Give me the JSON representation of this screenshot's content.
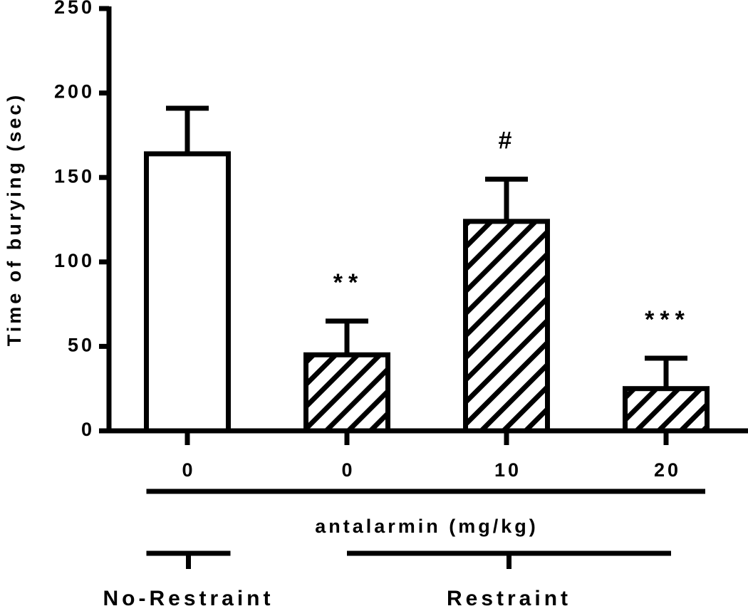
{
  "chart_data": {
    "type": "bar",
    "y_label": "Time of burying (sec)",
    "x_label": "antalarmin (mg/kg)",
    "categories": [
      "0",
      "0",
      "10",
      "20"
    ],
    "values": [
      164,
      45,
      124,
      25
    ],
    "errors": [
      27,
      20,
      25,
      18
    ],
    "hatched": [
      false,
      true,
      true,
      true
    ],
    "annotations": [
      null,
      "**",
      "#",
      "***"
    ],
    "groups": [
      {
        "name": "No-Restraint",
        "count": 1
      },
      {
        "name": "Restraint",
        "count": 3
      }
    ],
    "color": "#000000",
    "ylim": [
      0,
      250
    ],
    "yticks": [
      0,
      50,
      100,
      150,
      200,
      250
    ],
    "grid": false
  }
}
